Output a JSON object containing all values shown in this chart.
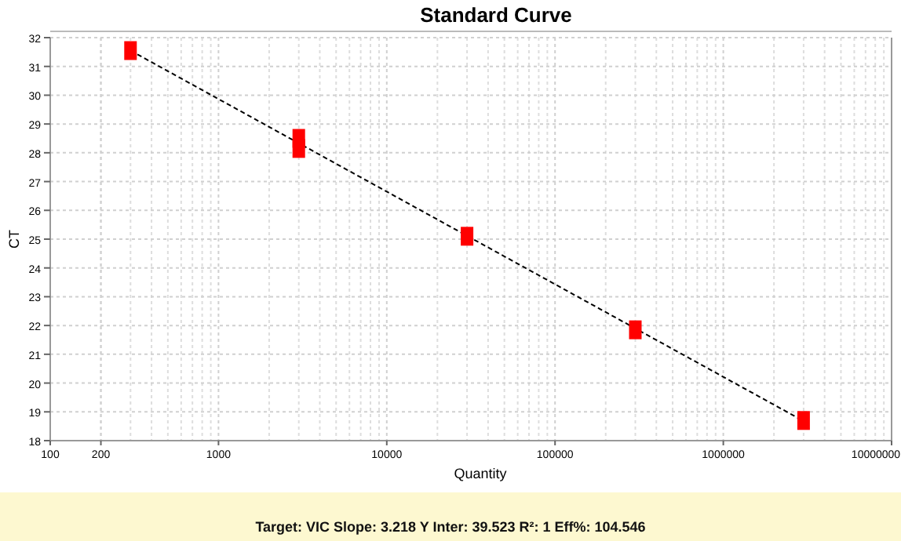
{
  "chart_data": {
    "type": "scatter",
    "title": "Standard Curve",
    "xlabel": "Quantity",
    "ylabel": "CT",
    "log": "x",
    "series": [
      {
        "color": "#ff0000",
        "marker": "square",
        "x": [
          300,
          3000,
          3000,
          30000,
          300000,
          3000000
        ],
        "values": [
          31.55,
          28.5,
          28.15,
          25.1,
          21.85,
          18.7
        ]
      },
      {
        "type": "line",
        "color": "#000000",
        "line_style": "dashed",
        "marker": "none",
        "x": [
          300,
          3000000
        ],
        "values": [
          31.55,
          18.68
        ]
      }
    ],
    "xlim": [
      100,
      10000000
    ],
    "xticks": [
      100,
      200,
      1000,
      10000,
      100000,
      1000000,
      10000000
    ],
    "ylim": [
      18,
      32
    ],
    "yticks": [
      18,
      19,
      20,
      21,
      22,
      23,
      24,
      25,
      26,
      27,
      28,
      29,
      30,
      31,
      32
    ],
    "grid": true,
    "annotations": [
      "Target: VIC Slope:  3.218 Y Inter: 39.523 R²: 1 Eff%: 104.546"
    ]
  }
}
